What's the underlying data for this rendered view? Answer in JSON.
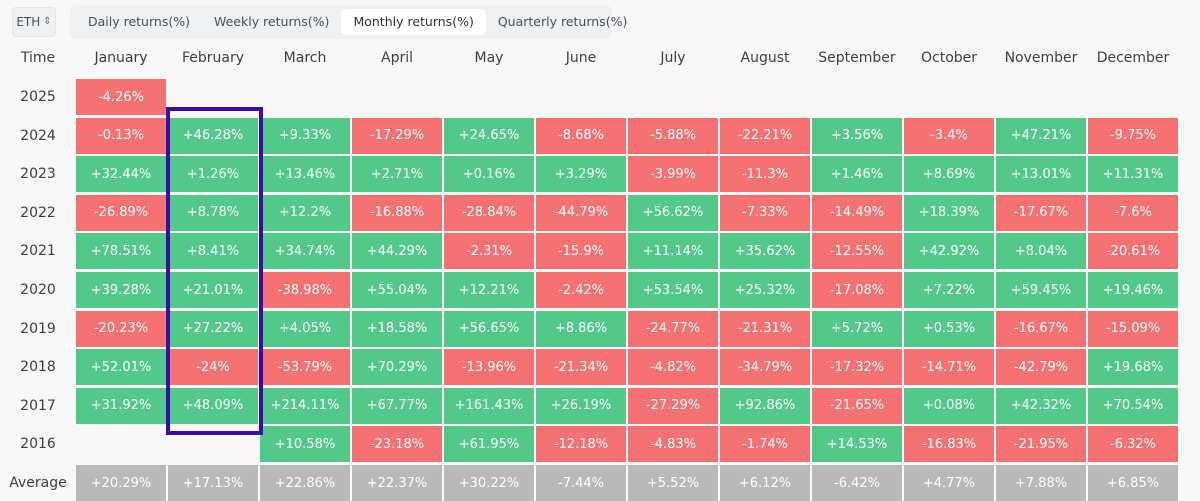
{
  "asset_selector": {
    "value": "ETH",
    "icon": "sort-updown-icon"
  },
  "tabs": [
    {
      "label": "Daily returns(%)",
      "active": false
    },
    {
      "label": "Weekly returns(%)",
      "active": false
    },
    {
      "label": "Monthly returns(%)",
      "active": true
    },
    {
      "label": "Quarterly returns(%)",
      "active": false
    }
  ],
  "table": {
    "time_header": "Time",
    "months": [
      "January",
      "February",
      "March",
      "April",
      "May",
      "June",
      "July",
      "August",
      "September",
      "October",
      "November",
      "December"
    ],
    "rows": [
      {
        "year": "2025",
        "values": [
          "-4.26%",
          null,
          null,
          null,
          null,
          null,
          null,
          null,
          null,
          null,
          null,
          null
        ]
      },
      {
        "year": "2024",
        "values": [
          "-0.13%",
          "+46.28%",
          "+9.33%",
          "-17.29%",
          "+24.65%",
          "-8.68%",
          "-5.88%",
          "-22.21%",
          "+3.56%",
          "-3.4%",
          "+47.21%",
          "-9.75%"
        ]
      },
      {
        "year": "2023",
        "values": [
          "+32.44%",
          "+1.26%",
          "+13.46%",
          "+2.71%",
          "+0.16%",
          "+3.29%",
          "-3.99%",
          "-11.3%",
          "+1.46%",
          "+8.69%",
          "+13.01%",
          "+11.31%"
        ]
      },
      {
        "year": "2022",
        "values": [
          "-26.89%",
          "+8.78%",
          "+12.2%",
          "-16.88%",
          "-28.84%",
          "-44.79%",
          "+56.62%",
          "-7.33%",
          "-14.49%",
          "+18.39%",
          "-17.67%",
          "-7.6%"
        ]
      },
      {
        "year": "2021",
        "values": [
          "+78.51%",
          "+8.41%",
          "+34.74%",
          "+44.29%",
          "-2.31%",
          "-15.9%",
          "+11.14%",
          "+35.62%",
          "-12.55%",
          "+42.92%",
          "+8.04%",
          "-20.61%"
        ]
      },
      {
        "year": "2020",
        "values": [
          "+39.28%",
          "+21.01%",
          "-38.98%",
          "+55.04%",
          "+12.21%",
          "-2.42%",
          "+53.54%",
          "+25.32%",
          "-17.08%",
          "+7.22%",
          "+59.45%",
          "+19.46%"
        ]
      },
      {
        "year": "2019",
        "values": [
          "-20.23%",
          "+27.22%",
          "+4.05%",
          "+18.58%",
          "+56.65%",
          "+8.86%",
          "-24.77%",
          "-21.31%",
          "+5.72%",
          "+0.53%",
          "-16.67%",
          "-15.09%"
        ]
      },
      {
        "year": "2018",
        "values": [
          "+52.01%",
          "-24%",
          "-53.79%",
          "+70.29%",
          "-13.96%",
          "-21.34%",
          "-4.82%",
          "-34.79%",
          "-17.32%",
          "-14.71%",
          "-42.79%",
          "+19.68%"
        ]
      },
      {
        "year": "2017",
        "values": [
          "+31.92%",
          "+48.09%",
          "+214.11%",
          "+67.77%",
          "+161.43%",
          "+26.19%",
          "-27.29%",
          "+92.86%",
          "-21.65%",
          "+0.08%",
          "+42.32%",
          "+70.54%"
        ]
      },
      {
        "year": "2016",
        "values": [
          null,
          null,
          "+10.58%",
          "-23.18%",
          "+61.95%",
          "-12.18%",
          "-4.83%",
          "-1.74%",
          "+14.53%",
          "-16.83%",
          "-21.95%",
          "-6.32%"
        ]
      }
    ],
    "average": {
      "label": "Average",
      "values": [
        "+20.29%",
        "+17.13%",
        "+22.86%",
        "+22.37%",
        "+30.22%",
        "-7.44%",
        "+5.52%",
        "+6.12%",
        "-6.42%",
        "+4.77%",
        "+7.88%",
        "+6.85%"
      ]
    },
    "highlighted_column": "February"
  },
  "colors": {
    "positive": "#52c98b",
    "negative": "#f67272",
    "average": "#b9b9b9",
    "highlight": "#3a0aa8"
  }
}
